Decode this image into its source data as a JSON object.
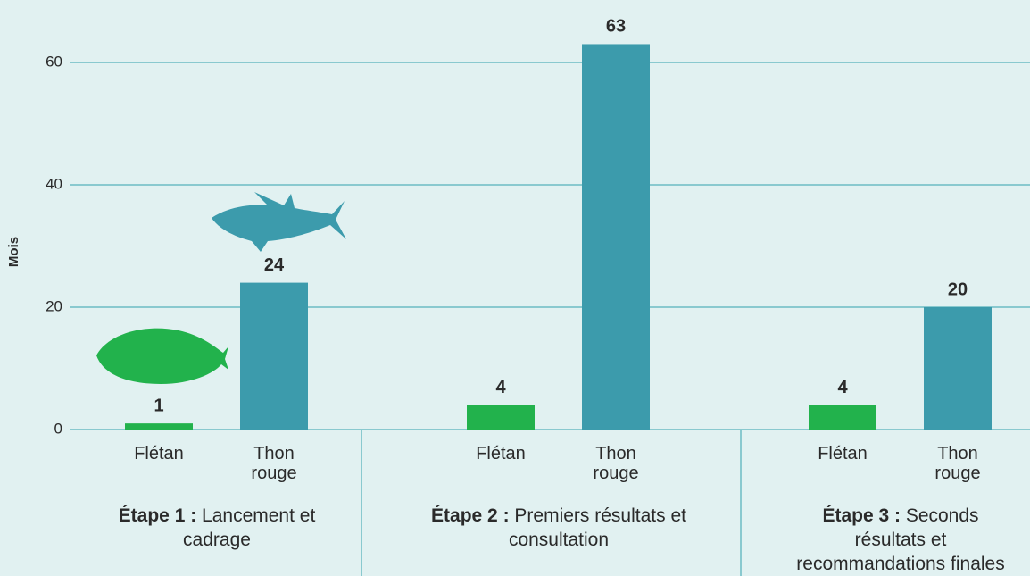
{
  "chart_data": {
    "type": "bar",
    "y_label": "Mois",
    "categories": [
      {
        "bold": "Étape 1 :",
        "text": "Lancement et cadrage"
      },
      {
        "bold": "Étape 2 :",
        "text": "Premiers résultats et consultation"
      },
      {
        "bold": "Étape 3 :",
        "text": "Seconds résultats et recommandations finales"
      }
    ],
    "series": [
      {
        "name": "Flétan",
        "color": "#22b24c",
        "values": [
          1,
          4,
          4
        ]
      },
      {
        "name": "Thon rouge",
        "color": "#3c9bac",
        "values": [
          24,
          63,
          20
        ]
      }
    ],
    "ylim": [
      0,
      70
    ],
    "yticks": [
      0,
      20,
      40,
      60
    ],
    "grid": true
  }
}
